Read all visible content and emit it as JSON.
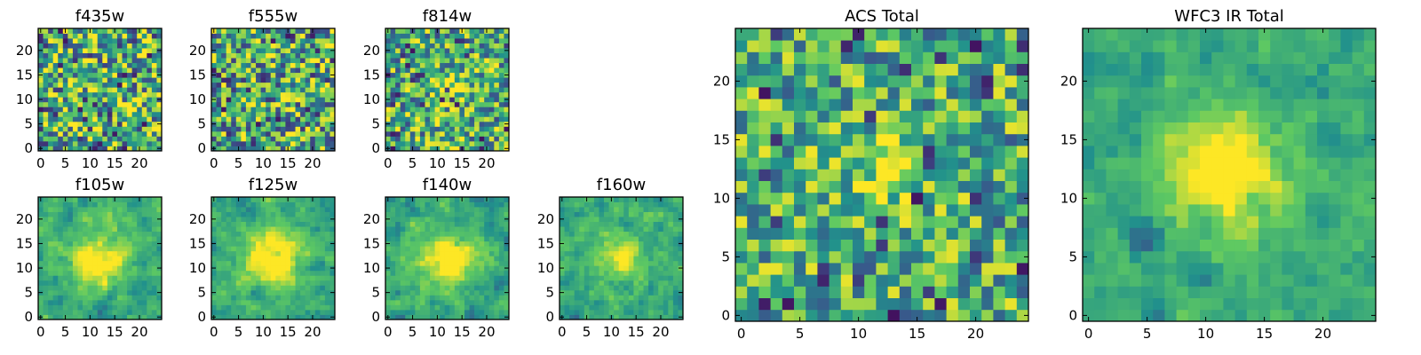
{
  "chart_data": [
    {
      "type": "heatmap",
      "title": "f435w",
      "seed": 11,
      "blob": 0.0,
      "sigma": 0,
      "noise": 0.9,
      "darkfrac": 0.05,
      "x_ticks": [
        0,
        5,
        10,
        15,
        20
      ],
      "y_ticks": [
        0,
        5,
        10,
        15,
        20
      ],
      "xlim": [
        -0.5,
        24.5
      ],
      "ylim": [
        -0.5,
        24.5
      ]
    },
    {
      "type": "heatmap",
      "title": "f555w",
      "seed": 23,
      "blob": 0.0,
      "sigma": 0,
      "noise": 0.9,
      "darkfrac": 0.04,
      "x_ticks": [
        0,
        5,
        10,
        15,
        20
      ],
      "y_ticks": [
        0,
        5,
        10,
        15,
        20
      ],
      "xlim": [
        -0.5,
        24.5
      ],
      "ylim": [
        -0.5,
        24.5
      ]
    },
    {
      "type": "heatmap",
      "title": "f814w",
      "seed": 37,
      "blob": 0.35,
      "sigma": 2.2,
      "noise": 0.8,
      "darkfrac": 0.05,
      "x_ticks": [
        0,
        5,
        10,
        15,
        20
      ],
      "y_ticks": [
        0,
        5,
        10,
        15,
        20
      ],
      "xlim": [
        -0.5,
        24.5
      ],
      "ylim": [
        -0.5,
        24.5
      ]
    },
    {
      "type": "heatmap",
      "title": "f105w",
      "seed": 41,
      "blob": 0.5,
      "sigma": 4.0,
      "noise": 0.55,
      "darkfrac": 0.04,
      "x_ticks": [
        0,
        5,
        10,
        15,
        20
      ],
      "y_ticks": [
        0,
        5,
        10,
        15,
        20
      ],
      "xlim": [
        -0.5,
        24.5
      ],
      "ylim": [
        -0.5,
        24.5
      ]
    },
    {
      "type": "heatmap",
      "title": "f125w",
      "seed": 53,
      "blob": 0.55,
      "sigma": 4.0,
      "noise": 0.5,
      "darkfrac": 0.02,
      "x_ticks": [
        0,
        5,
        10,
        15,
        20
      ],
      "y_ticks": [
        0,
        5,
        10,
        15,
        20
      ],
      "xlim": [
        -0.5,
        24.5
      ],
      "ylim": [
        -0.5,
        24.5
      ]
    },
    {
      "type": "heatmap",
      "title": "f140w",
      "seed": 67,
      "blob": 0.5,
      "sigma": 4.0,
      "noise": 0.55,
      "darkfrac": 0.03,
      "x_ticks": [
        0,
        5,
        10,
        15,
        20
      ],
      "y_ticks": [
        0,
        5,
        10,
        15,
        20
      ],
      "xlim": [
        -0.5,
        24.5
      ],
      "ylim": [
        -0.5,
        24.5
      ]
    },
    {
      "type": "heatmap",
      "title": "f160w",
      "seed": 79,
      "blob": 0.5,
      "sigma": 2.5,
      "noise": 0.55,
      "darkfrac": 0.02,
      "x_ticks": [
        0,
        5,
        10,
        15,
        20
      ],
      "y_ticks": [
        0,
        5,
        10,
        15,
        20
      ],
      "xlim": [
        -0.5,
        24.5
      ],
      "ylim": [
        -0.5,
        24.5
      ]
    },
    {
      "type": "heatmap",
      "title": "ACS Total",
      "seed": 97,
      "blob": 0.3,
      "sigma": 2.5,
      "noise": 0.7,
      "darkfrac": 0.05,
      "x_ticks": [
        0,
        5,
        10,
        15,
        20
      ],
      "y_ticks": [
        0,
        5,
        10,
        15,
        20
      ],
      "xlim": [
        -0.5,
        24.5
      ],
      "ylim": [
        -0.5,
        24.5
      ]
    },
    {
      "type": "heatmap",
      "title": "WFC3 IR Total",
      "seed": 101,
      "blob": 0.6,
      "sigma": 3.5,
      "noise": 0.4,
      "darkfrac": 0.03,
      "x_ticks": [
        0,
        5,
        10,
        15,
        20
      ],
      "y_ticks": [
        0,
        5,
        10,
        15,
        20
      ],
      "xlim": [
        -0.5,
        24.5
      ],
      "ylim": [
        -0.5,
        24.5
      ]
    }
  ],
  "colormap": [
    "#440154",
    "#3b528b",
    "#21918c",
    "#5ec962",
    "#fde725"
  ]
}
